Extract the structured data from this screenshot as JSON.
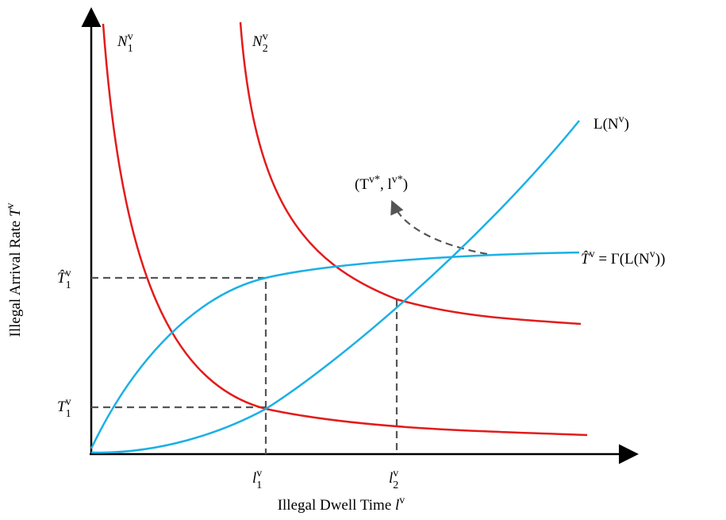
{
  "labels": [
    {
      "parts": [
        {
          "t": "N"
        },
        {
          "t": "v",
          "pos": "sup"
        },
        {
          "t": "1",
          "pos": "sub"
        }
      ]
    },
    {
      "parts": [
        {
          "t": "N"
        },
        {
          "t": "v",
          "pos": "sup"
        },
        {
          "t": "2",
          "pos": "sub"
        }
      ]
    },
    {
      "parts": [
        {
          "t": "L(N"
        },
        {
          "t": "v",
          "pos": "sup"
        },
        {
          "t": ")"
        }
      ]
    },
    {
      "parts": [
        {
          "t": "(T"
        },
        {
          "t": "v*",
          "pos": "sup"
        },
        {
          "t": ", l"
        },
        {
          "t": "v*",
          "pos": "sup"
        },
        {
          "t": ")"
        }
      ]
    },
    {
      "parts": [
        {
          "t": "T̂"
        },
        {
          "t": "v",
          "pos": "sup"
        },
        {
          "t": " = Γ(L(N"
        },
        {
          "t": "v",
          "pos": "sup"
        },
        {
          "t": "))"
        }
      ]
    },
    {
      "parts": [
        {
          "t": "T̂"
        },
        {
          "t": "v",
          "pos": "sup"
        },
        {
          "t": "1",
          "pos": "sub"
        }
      ]
    },
    {
      "parts": [
        {
          "t": "T"
        },
        {
          "t": "v",
          "pos": "sup"
        },
        {
          "t": "1",
          "pos": "sub"
        }
      ]
    },
    {
      "parts": [
        {
          "t": "l"
        },
        {
          "t": "v",
          "pos": "sup"
        },
        {
          "t": "1",
          "pos": "sub"
        }
      ]
    },
    {
      "parts": [
        {
          "t": "l"
        },
        {
          "t": "v",
          "pos": "sup"
        },
        {
          "t": "2",
          "pos": "sub"
        }
      ]
    },
    {
      "parts": [
        {
          "t": "Illegal Dwell Time "
        },
        {
          "t": "l"
        },
        {
          "t": "v",
          "pos": "sup"
        }
      ]
    },
    {
      "parts": [
        {
          "t": "Illegal Arrival Rate "
        },
        {
          "t": "T"
        },
        {
          "t": "v",
          "pos": "sup"
        }
      ]
    }
  ]
}
